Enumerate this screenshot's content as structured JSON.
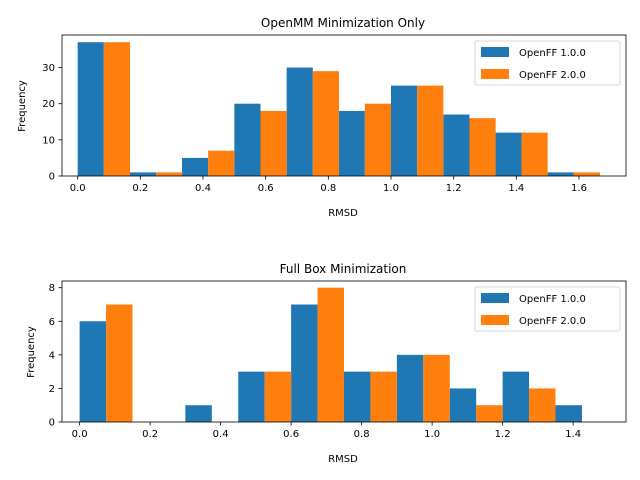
{
  "colors": {
    "series1": "#1f77b4",
    "series2": "#ff7f0e"
  },
  "chart_data": [
    {
      "type": "bar",
      "title": "OpenMM Minimization Only",
      "xlabel": "RMSD",
      "ylabel": "Frequency",
      "bin_width": 0.167,
      "x": [
        0.0,
        0.167,
        0.333,
        0.5,
        0.667,
        0.833,
        1.0,
        1.167,
        1.333,
        1.5
      ],
      "xlim": [
        -0.05,
        1.75
      ],
      "ylim": [
        0,
        39
      ],
      "xticks": [
        0.0,
        0.2,
        0.4,
        0.6,
        0.8,
        1.0,
        1.2,
        1.4,
        1.6
      ],
      "xtick_labels": [
        "0.0",
        "0.2",
        "0.4",
        "0.6",
        "0.8",
        "1.0",
        "1.2",
        "1.4",
        "1.6"
      ],
      "yticks": [
        0,
        10,
        20,
        30
      ],
      "ytick_labels": [
        "0",
        "10",
        "20",
        "30"
      ],
      "legend_position": "top-right",
      "series": [
        {
          "name": "OpenFF 1.0.0",
          "values": [
            37,
            1,
            5,
            20,
            30,
            18,
            25,
            17,
            12,
            1
          ]
        },
        {
          "name": "OpenFF 2.0.0",
          "values": [
            37,
            1,
            7,
            18,
            29,
            20,
            25,
            16,
            12,
            1
          ]
        }
      ]
    },
    {
      "type": "bar",
      "title": "Full Box Minimization",
      "xlabel": "RMSD",
      "ylabel": "Frequency",
      "bin_width": 0.15,
      "x": [
        0.0,
        0.15,
        0.3,
        0.45,
        0.6,
        0.75,
        0.9,
        1.05,
        1.2,
        1.35
      ],
      "xlim": [
        -0.05,
        1.55
      ],
      "ylim": [
        0,
        8.4
      ],
      "xticks": [
        0.0,
        0.2,
        0.4,
        0.6,
        0.8,
        1.0,
        1.2,
        1.4
      ],
      "xtick_labels": [
        "0.0",
        "0.2",
        "0.4",
        "0.6",
        "0.8",
        "1.0",
        "1.2",
        "1.4"
      ],
      "yticks": [
        0,
        2,
        4,
        6,
        8
      ],
      "ytick_labels": [
        "0",
        "2",
        "4",
        "6",
        "8"
      ],
      "legend_position": "top-right",
      "series": [
        {
          "name": "OpenFF 1.0.0",
          "values": [
            6,
            0,
            1,
            3,
            7,
            3,
            4,
            2,
            3,
            1
          ]
        },
        {
          "name": "OpenFF 2.0.0",
          "values": [
            7,
            0,
            0,
            3,
            8,
            3,
            4,
            1,
            2,
            0
          ]
        }
      ]
    }
  ]
}
